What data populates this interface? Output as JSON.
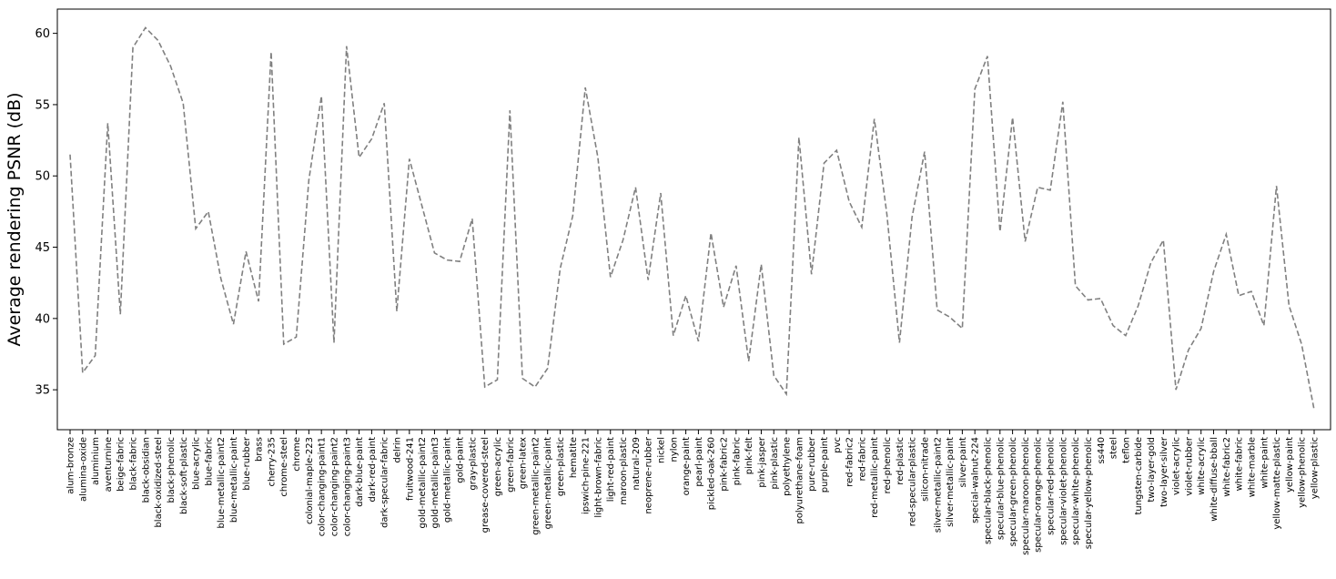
{
  "chart_data": {
    "type": "line",
    "title": "",
    "xlabel": "",
    "ylabel": "Average rendering PSNR (dB)",
    "ylim": [
      32.2,
      61.7
    ],
    "yticks": [
      35,
      40,
      45,
      50,
      55,
      60
    ],
    "grid": false,
    "line_style": "dashed",
    "colors": {
      "line": "#808080",
      "axes": "#000000",
      "background": "#ffffff"
    },
    "categories": [
      "alum-bronze",
      "alumina-oxide",
      "aluminium",
      "aventurnine",
      "beige-fabric",
      "black-fabric",
      "black-obsidian",
      "black-oxidized-steel",
      "black-phenolic",
      "black-soft-plastic",
      "blue-acrylic",
      "blue-fabric",
      "blue-metallic-paint2",
      "blue-metallic-paint",
      "blue-rubber",
      "brass",
      "cherry-235",
      "chrome-steel",
      "chrome",
      "colonial-maple-223",
      "color-changing-paint1",
      "color-changing-paint2",
      "color-changing-paint3",
      "dark-blue-paint",
      "dark-red-paint",
      "dark-specular-fabric",
      "delrin",
      "fruitwood-241",
      "gold-metallic-paint2",
      "gold-metallic-paint3",
      "gold-metallic-paint",
      "gold-paint",
      "gray-plastic",
      "grease-covered-steel",
      "green-acrylic",
      "green-fabric",
      "green-latex",
      "green-metallic-paint2",
      "green-metallic-paint",
      "green-plastic",
      "hematite",
      "ipswich-pine-221",
      "light-brown-fabric",
      "light-red-paint",
      "maroon-plastic",
      "natural-209",
      "neoprene-rubber",
      "nickel",
      "nylon",
      "orange-paint",
      "pearl-paint",
      "pickled-oak-260",
      "pink-fabric2",
      "pink-fabric",
      "pink-felt",
      "pink-jasper",
      "pink-plastic",
      "polyethylene",
      "polyurethane-foam",
      "pure-rubber",
      "purple-paint",
      "pvc",
      "red-fabric2",
      "red-fabric",
      "red-metallic-paint",
      "red-phenolic",
      "red-plastic",
      "red-specular-plastic",
      "silicon-nitrade",
      "silver-metallic-paint2",
      "silver-metallic-paint",
      "silver-paint",
      "special-walnut-224",
      "specular-black-phenolic",
      "specular-blue-phenolic",
      "specular-green-phenolic",
      "specular-maroon-phenolic",
      "specular-orange-phenolic",
      "specular-red-phenolic",
      "specular-violet-phenolic",
      "specular-white-phenolic",
      "specular-yellow-phenolic",
      "ss440",
      "steel",
      "teflon",
      "tungsten-carbide",
      "two-layer-gold",
      "two-layer-silver",
      "violet-acrylic",
      "violet-rubber",
      "white-acrylic",
      "white-diffuse-bball",
      "white-fabric2",
      "white-fabric",
      "white-marble",
      "white-paint",
      "yellow-matte-plastic",
      "yellow-paint",
      "yellow-phenolic",
      "yellow-plastic"
    ],
    "series": [
      {
        "values": [
          51.5,
          36.2,
          37.4,
          53.7,
          40.3,
          59.0,
          60.4,
          59.5,
          57.7,
          55.1,
          46.3,
          47.5,
          42.8,
          39.6,
          44.7,
          41.2,
          58.7,
          38.2,
          38.7,
          49.7,
          55.6,
          38.3,
          59.1,
          51.3,
          52.6,
          55.1,
          40.5,
          51.2,
          47.9,
          44.6,
          44.1,
          44.0,
          47.0,
          35.2,
          35.7,
          54.6,
          35.8,
          35.2,
          36.5,
          43.5,
          47.2,
          56.2,
          51.3,
          42.9,
          45.5,
          49.2,
          42.7,
          48.8,
          38.8,
          41.6,
          38.4,
          46.0,
          40.8,
          43.7,
          37.0,
          43.8,
          36.0,
          34.7,
          52.7,
          43.1,
          50.9,
          51.8,
          48.2,
          46.4,
          54.0,
          47.3,
          38.3,
          47.1,
          51.7,
          40.6,
          40.1,
          39.3,
          56.1,
          58.4,
          46.1,
          54.1,
          45.4,
          49.2,
          49.0,
          55.2,
          42.3,
          41.3,
          41.4,
          39.5,
          38.8,
          40.9,
          43.9,
          45.5,
          35.0,
          37.8,
          39.3,
          43.3,
          45.9,
          41.6,
          41.9,
          39.5,
          49.3,
          40.9,
          38.2,
          33.6
        ]
      }
    ]
  }
}
